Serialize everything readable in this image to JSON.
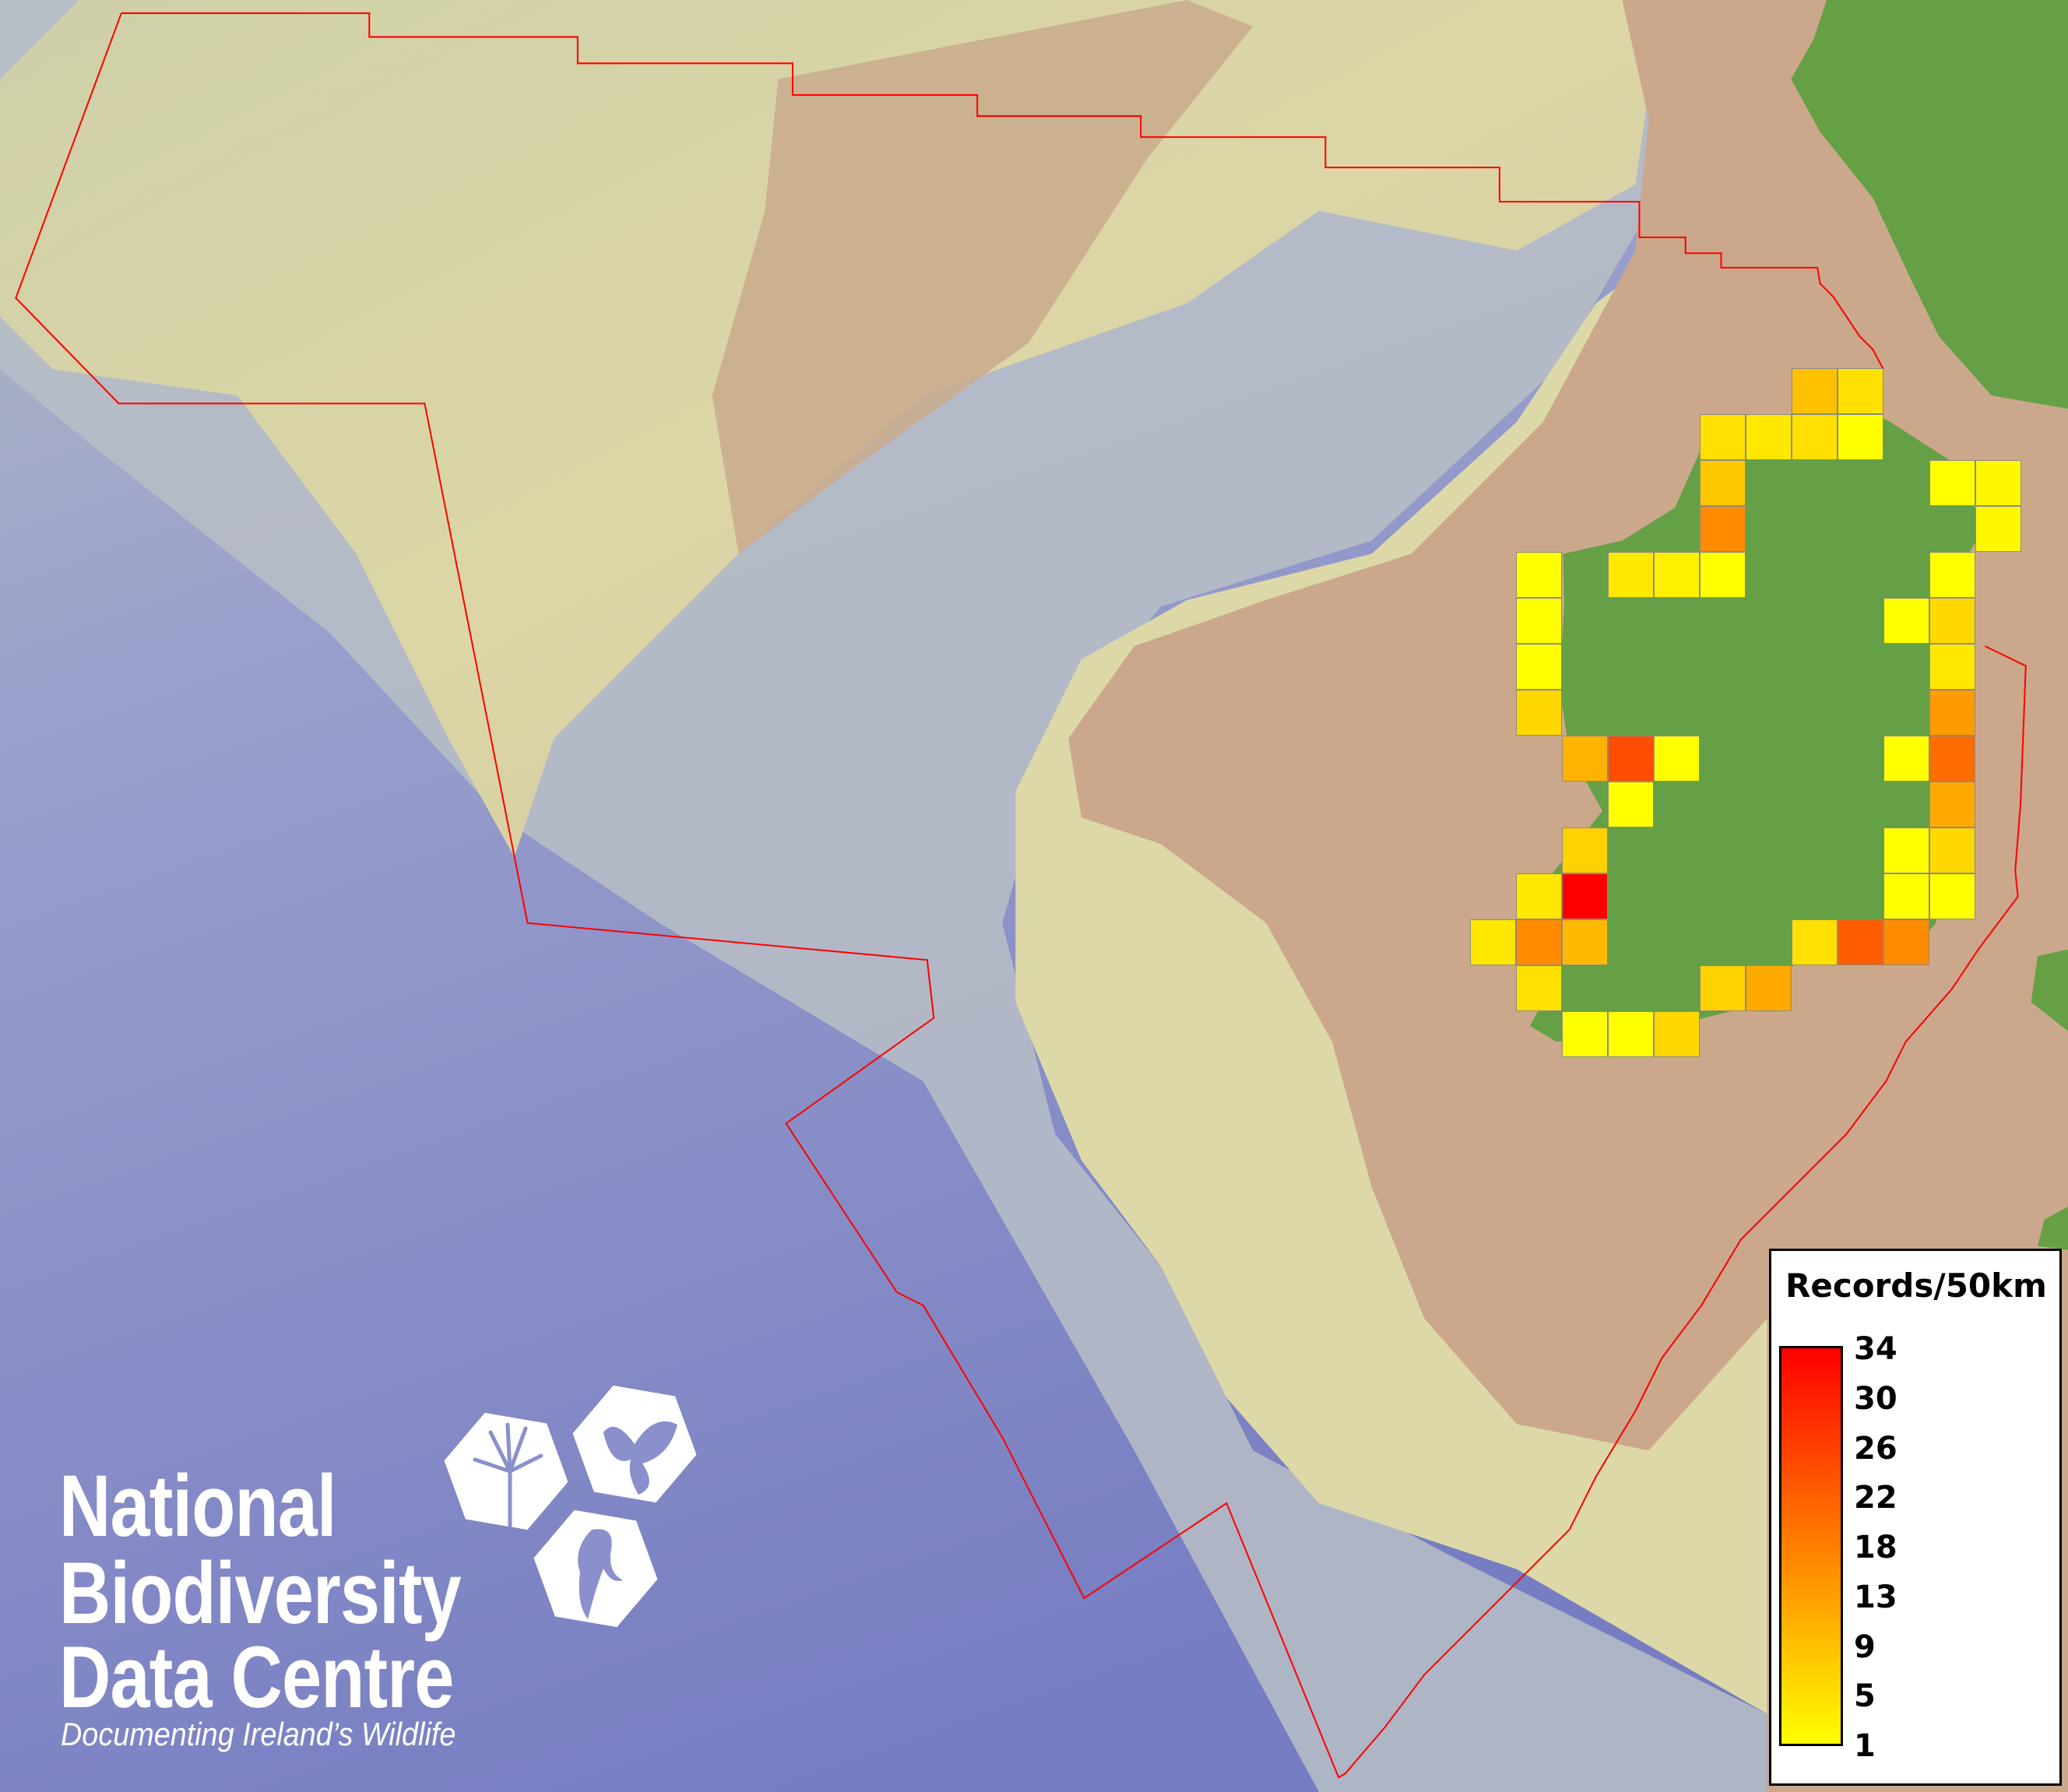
{
  "map": {
    "colors": {
      "deep_sea": "#7d84c4",
      "slope": "#b9bfc6",
      "shelf": "#d8d5a6",
      "continental_shelf": "#cba88c",
      "land": "#65a046",
      "boundary": "#ff0000",
      "cell_border": "#8a8a8a"
    },
    "grid_resolution": "50km",
    "grid_values": [
      [
        null,
        null,
        null,
        null,
        null,
        null,
        null,
        9,
        5,
        null,
        null,
        null
      ],
      [
        null,
        null,
        null,
        null,
        null,
        5,
        4,
        5,
        1,
        null,
        null,
        null
      ],
      [
        null,
        null,
        null,
        null,
        null,
        8,
        null,
        null,
        null,
        null,
        1,
        2
      ],
      [
        null,
        null,
        null,
        null,
        null,
        16,
        null,
        null,
        null,
        null,
        null,
        2
      ],
      [
        null,
        1,
        null,
        4,
        3,
        1,
        null,
        null,
        null,
        null,
        1,
        null
      ],
      [
        null,
        1,
        null,
        null,
        null,
        null,
        null,
        null,
        null,
        1,
        6,
        null
      ],
      [
        null,
        1,
        null,
        null,
        null,
        null,
        null,
        null,
        null,
        null,
        4,
        null
      ],
      [
        null,
        6,
        null,
        null,
        null,
        null,
        null,
        null,
        null,
        null,
        14,
        null
      ],
      [
        null,
        null,
        11,
        24,
        1,
        null,
        null,
        null,
        null,
        1,
        20,
        null
      ],
      [
        null,
        null,
        null,
        1,
        null,
        null,
        null,
        null,
        null,
        null,
        12,
        null
      ],
      [
        null,
        null,
        7,
        null,
        null,
        null,
        null,
        null,
        null,
        1,
        6,
        null
      ],
      [
        null,
        4,
        34,
        null,
        null,
        null,
        null,
        null,
        null,
        1,
        1,
        null
      ],
      [
        4,
        16,
        10,
        null,
        null,
        null,
        null,
        5,
        22,
        16,
        null,
        null
      ],
      [
        null,
        5,
        null,
        null,
        null,
        7,
        12,
        null,
        null,
        null,
        null,
        null
      ],
      [
        null,
        null,
        1,
        1,
        6,
        null,
        null,
        null,
        null,
        null,
        null,
        null
      ]
    ]
  },
  "legend": {
    "title": "Records/50km",
    "min": 1,
    "max": 34,
    "color_min": "#ffff00",
    "color_mid": "#ffa200",
    "color_max": "#ff0000",
    "ticks": [
      "34",
      "30",
      "26",
      "22",
      "18",
      "13",
      "9",
      "5",
      "1"
    ]
  },
  "logo": {
    "line1": "National",
    "line2": "Biodiversity",
    "line3": "Data Centre",
    "tagline": "Documenting Ireland’s Wildlife",
    "icons": [
      "tree-icon",
      "butterfly-icon",
      "seahorse-icon"
    ]
  }
}
